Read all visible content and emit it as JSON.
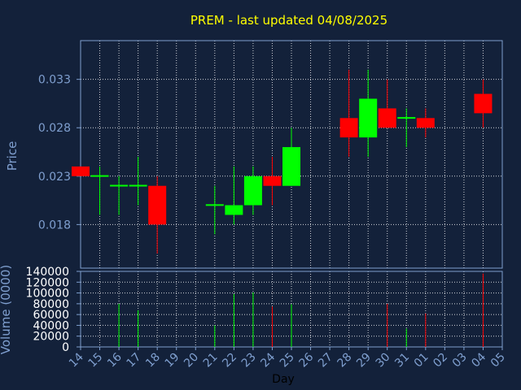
{
  "chart_data": {
    "type": "candlestick",
    "title": "PREM - last updated 04/08/2025",
    "xlabel": "Day",
    "price_panel": {
      "ylabel": "Price",
      "ylim": [
        0.0135,
        0.037
      ],
      "yticks": [
        0.018,
        0.023,
        0.028,
        0.033
      ],
      "ytick_labels": [
        "0.018",
        "0.023",
        "0.028",
        "0.033"
      ],
      "grid": true
    },
    "volume_panel": {
      "ylabel": "Volume (0000)",
      "ylim": [
        0,
        140000
      ],
      "yticks": [
        0,
        20000,
        40000,
        60000,
        80000,
        100000,
        120000,
        140000
      ],
      "ytick_labels": [
        "0",
        "20000",
        "40000",
        "60000",
        "80000",
        "100000",
        "120000",
        "140000"
      ],
      "grid": true
    },
    "day_ticks": [
      "14",
      "15",
      "16",
      "17",
      "18",
      "19",
      "20",
      "21",
      "22",
      "23",
      "24",
      "25",
      "26",
      "27",
      "28",
      "29",
      "30",
      "31",
      "01",
      "02",
      "03",
      "04",
      "05"
    ],
    "candles": [
      {
        "day": "14",
        "open": 0.024,
        "close": 0.023,
        "high": 0.024,
        "low": 0.023,
        "volume": 0
      },
      {
        "day": "15",
        "open": 0.023,
        "close": 0.0231,
        "high": 0.024,
        "low": 0.019,
        "volume": 0
      },
      {
        "day": "16",
        "open": 0.022,
        "close": 0.0221,
        "high": 0.023,
        "low": 0.019,
        "volume": 80000
      },
      {
        "day": "17",
        "open": 0.022,
        "close": 0.0221,
        "high": 0.025,
        "low": 0.02,
        "volume": 68000
      },
      {
        "day": "18",
        "open": 0.022,
        "close": 0.018,
        "high": 0.023,
        "low": 0.015,
        "volume": 0
      },
      {
        "day": "21",
        "open": 0.02,
        "close": 0.0201,
        "high": 0.022,
        "low": 0.017,
        "volume": 40000
      },
      {
        "day": "22",
        "open": 0.019,
        "close": 0.02,
        "high": 0.024,
        "low": 0.018,
        "volume": 98000
      },
      {
        "day": "23",
        "open": 0.02,
        "close": 0.023,
        "high": 0.024,
        "low": 0.019,
        "volume": 101000
      },
      {
        "day": "24",
        "open": 0.023,
        "close": 0.022,
        "high": 0.025,
        "low": 0.02,
        "volume": 75000
      },
      {
        "day": "25",
        "open": 0.022,
        "close": 0.026,
        "high": 0.028,
        "low": 0.022,
        "volume": 79000
      },
      {
        "day": "28",
        "open": 0.029,
        "close": 0.027,
        "high": 0.034,
        "low": 0.025,
        "volume": 0
      },
      {
        "day": "29",
        "open": 0.027,
        "close": 0.031,
        "high": 0.034,
        "low": 0.025,
        "volume": 0
      },
      {
        "day": "30",
        "open": 0.03,
        "close": 0.028,
        "high": 0.033,
        "low": 0.028,
        "volume": 80000
      },
      {
        "day": "31",
        "open": 0.029,
        "close": 0.0291,
        "high": 0.03,
        "low": 0.026,
        "volume": 34000
      },
      {
        "day": "01",
        "open": 0.029,
        "close": 0.028,
        "high": 0.03,
        "low": 0.027,
        "volume": 62000
      },
      {
        "day": "04",
        "open": 0.0315,
        "close": 0.0295,
        "high": 0.033,
        "low": 0.028,
        "volume": 136000
      }
    ]
  },
  "colors": {
    "background": "#13213a",
    "panel": "#13213a",
    "up": "#00ff00",
    "down": "#ff0000",
    "title": "#ffff00",
    "axis_text": "#7f9fcf",
    "grid": "#ffffff",
    "frame": "#7f9fcf"
  }
}
